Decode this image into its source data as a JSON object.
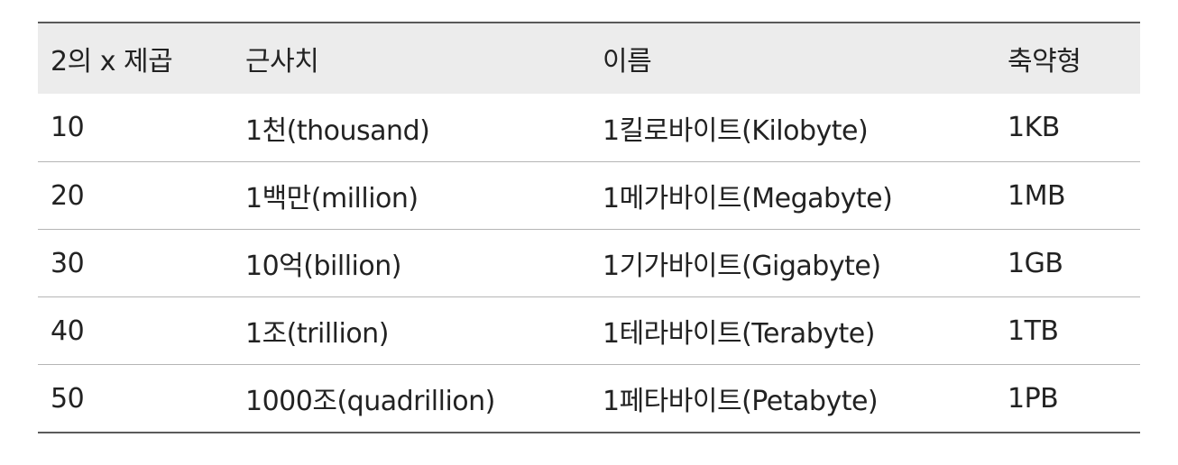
{
  "table": {
    "headers": [
      "2의 x 제곱",
      "근사치",
      "이름",
      "축약형"
    ],
    "rows": [
      [
        "10",
        "1천(thousand)",
        "1킬로바이트(Kilobyte)",
        "1KB"
      ],
      [
        "20",
        "1백만(million)",
        "1메가바이트(Megabyte)",
        "1MB"
      ],
      [
        "30",
        "10억(billion)",
        "1기가바이트(Gigabyte)",
        "1GB"
      ],
      [
        "40",
        "1조(trillion)",
        "1테라바이트(Terabyte)",
        "1TB"
      ],
      [
        "50",
        "1000조(quadrillion)",
        "1페타바이트(Petabyte)",
        "1PB"
      ]
    ]
  }
}
